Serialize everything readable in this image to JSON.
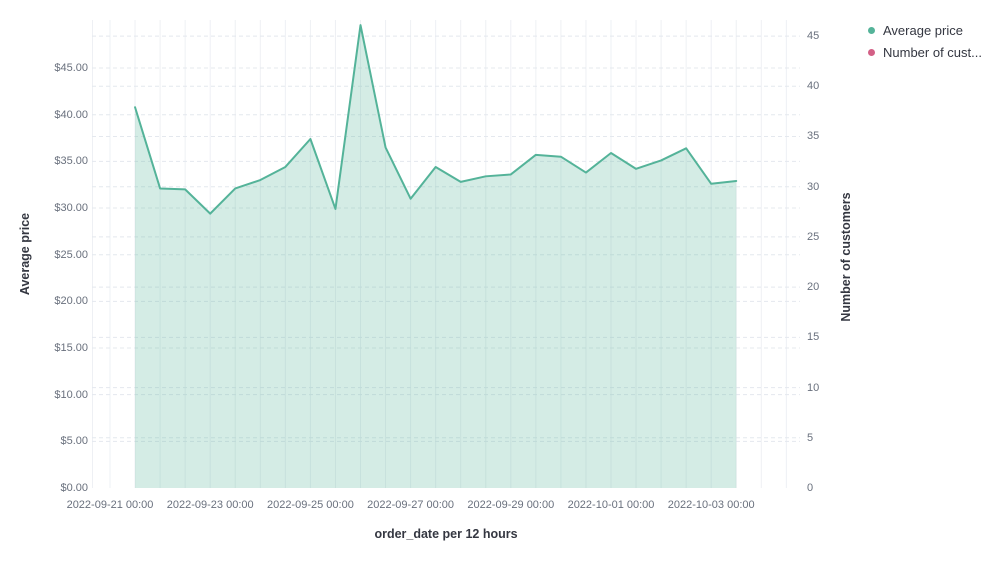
{
  "chart_data": {
    "type": "area",
    "title": "",
    "xlabel": "order_date per 12 hours",
    "ylabel_left": "Average price",
    "ylabel_right": "Number of customers",
    "grid": true,
    "legend_position": "top-right",
    "x": [
      "2022-09-21 12:00",
      "2022-09-22 00:00",
      "2022-09-22 12:00",
      "2022-09-23 00:00",
      "2022-09-23 12:00",
      "2022-09-24 00:00",
      "2022-09-24 12:00",
      "2022-09-25 00:00",
      "2022-09-25 12:00",
      "2022-09-26 00:00",
      "2022-09-26 12:00",
      "2022-09-27 00:00",
      "2022-09-27 12:00",
      "2022-09-28 00:00",
      "2022-09-28 12:00",
      "2022-09-29 00:00",
      "2022-09-29 12:00",
      "2022-09-30 00:00",
      "2022-09-30 12:00",
      "2022-10-01 00:00",
      "2022-10-01 12:00",
      "2022-10-02 00:00",
      "2022-10-02 12:00",
      "2022-10-03 00:00",
      "2022-10-03 12:00"
    ],
    "series": [
      {
        "name": "Average price",
        "axis": "left",
        "color": "#54b399",
        "fill_opacity": 0.25,
        "values": [
          40.8,
          32.1,
          32.0,
          29.4,
          32.1,
          33.0,
          34.4,
          37.4,
          29.9,
          49.6,
          36.5,
          31.0,
          34.4,
          32.8,
          33.4,
          33.6,
          35.7,
          35.5,
          33.8,
          35.9,
          34.2,
          35.1,
          36.4,
          32.6,
          32.9
        ]
      },
      {
        "name": "Number of customers",
        "axis": "right",
        "color": "#d36086",
        "values": []
      }
    ],
    "y_left_range": [
      0,
      50.15
    ],
    "y_right_range": [
      0,
      46.6
    ],
    "y_left_tick_values": [
      0,
      5,
      10,
      15,
      20,
      25,
      30,
      35,
      40,
      45
    ],
    "y_right_tick_values": [
      0,
      5,
      10,
      15,
      20,
      25,
      30,
      35,
      40,
      45
    ],
    "x_tick_labels": [
      "2022-09-21 00:00",
      "2022-09-23 00:00",
      "2022-09-25 00:00",
      "2022-09-27 00:00",
      "2022-09-29 00:00",
      "2022-10-01 00:00",
      "2022-10-03 00:00"
    ]
  },
  "axes": {
    "left": {
      "title": "Average price",
      "ticks": [
        "$0.00",
        "$5.00",
        "$10.00",
        "$15.00",
        "$20.00",
        "$25.00",
        "$30.00",
        "$35.00",
        "$40.00",
        "$45.00"
      ]
    },
    "right": {
      "title": "Number of customers",
      "ticks": [
        "0",
        "5",
        "10",
        "15",
        "20",
        "25",
        "30",
        "35",
        "40",
        "45"
      ]
    },
    "x": {
      "title": "order_date per 12 hours"
    }
  },
  "legend": {
    "items": [
      {
        "label": "Average price",
        "color": "#54b399"
      },
      {
        "label": "Number of cust...",
        "color": "#d36086"
      }
    ]
  },
  "colors": {
    "background": "#ffffff",
    "grid_horizontal": "#e4e8ee",
    "grid_vertical": "#eef0f4",
    "tick_text": "#69707d",
    "title_text": "#343741",
    "series_area": "#54b399",
    "series_hidden": "#d36086"
  }
}
